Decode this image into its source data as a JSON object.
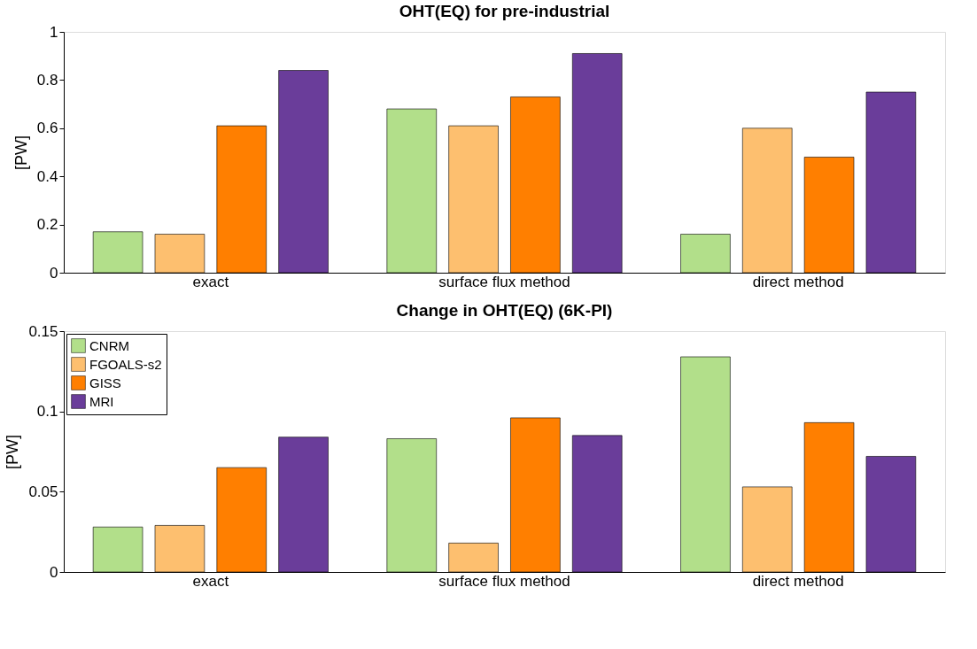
{
  "chart_data": [
    {
      "type": "bar",
      "title": "OHT(EQ) for pre-industrial",
      "ylabel": "[PW]",
      "categories": [
        "exact",
        "surface flux method",
        "direct method"
      ],
      "ylim": [
        0,
        1
      ],
      "yticks": [
        0,
        0.2,
        0.4,
        0.6,
        0.8,
        1
      ],
      "grid": false,
      "legend": false,
      "series": [
        {
          "color": "#b2df8a",
          "values": [
            0.17,
            0.68,
            0.16
          ]
        },
        {
          "color": "#fdbf6f",
          "values": [
            0.16,
            0.61,
            0.6
          ]
        },
        {
          "color": "#ff7f00",
          "values": [
            0.61,
            0.73,
            0.48
          ]
        },
        {
          "color": "#6a3d9a",
          "values": [
            0.84,
            0.91,
            0.75
          ]
        }
      ]
    },
    {
      "type": "bar",
      "title": "Change in OHT(EQ) (6K-PI)",
      "ylabel": "[PW]",
      "categories": [
        "exact",
        "surface flux method",
        "direct method"
      ],
      "ylim": [
        0,
        0.15
      ],
      "yticks": [
        0,
        0.05,
        0.1,
        0.15
      ],
      "grid": false,
      "legend": "top left",
      "series": [
        {
          "name": "CNRM",
          "color": "#b2df8a",
          "values": [
            0.028,
            0.083,
            0.134
          ]
        },
        {
          "name": "FGOALS-s2",
          "color": "#fdbf6f",
          "values": [
            0.029,
            0.018,
            0.053
          ]
        },
        {
          "name": "GISS",
          "color": "#ff7f00",
          "values": [
            0.065,
            0.096,
            0.093
          ]
        },
        {
          "name": "MRI",
          "color": "#6a3d9a",
          "values": [
            0.084,
            0.085,
            0.072
          ]
        }
      ]
    }
  ]
}
